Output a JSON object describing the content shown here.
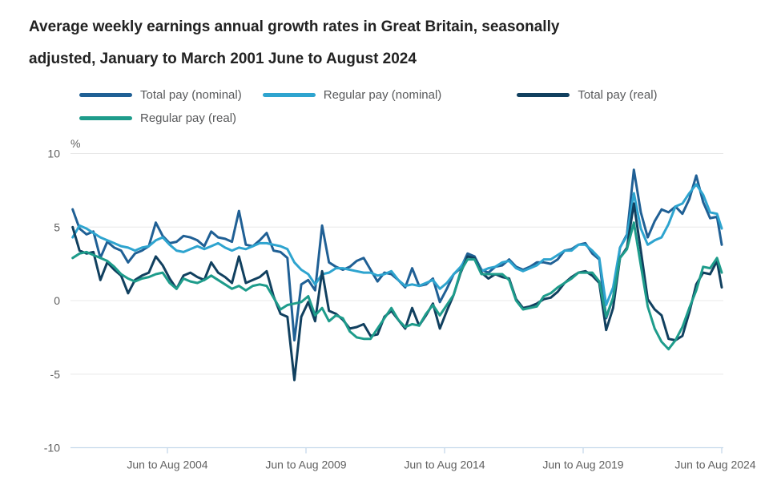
{
  "title": {
    "line1": "Average weekly earnings annual growth rates in Great Britain, seasonally",
    "line2": "adjusted, January to March 2001 June to August 2024"
  },
  "chart_data": {
    "type": "line",
    "title": "Average weekly earnings annual growth rates in Great Britain, seasonally adjusted, January to March 2001 June to August 2024",
    "unit_label": "%",
    "ylabel": "%",
    "xlabel": "",
    "ylim": [
      -10,
      10
    ],
    "yticks": [
      "10",
      "5",
      "0",
      "-5",
      "-10"
    ],
    "ytick_values": [
      10,
      5,
      0,
      -5,
      -10
    ],
    "grid": "horizontal",
    "legend_position": "top",
    "xticks": [
      {
        "label": "Jun to Aug 2004",
        "year": 2004.54
      },
      {
        "label": "Jun to Aug 2009",
        "year": 2009.54
      },
      {
        "label": "Jun to Aug 2014",
        "year": 2014.54
      },
      {
        "label": "Jun to Aug 2019",
        "year": 2019.54
      },
      {
        "label": "Jun to Aug 2024",
        "year": 2024.54
      }
    ],
    "x_years": [
      2001.12,
      2001.37,
      2001.62,
      2001.87,
      2002.12,
      2002.37,
      2002.62,
      2002.87,
      2003.12,
      2003.37,
      2003.62,
      2003.87,
      2004.12,
      2004.37,
      2004.62,
      2004.87,
      2005.12,
      2005.37,
      2005.62,
      2005.87,
      2006.12,
      2006.37,
      2006.62,
      2006.87,
      2007.12,
      2007.37,
      2007.62,
      2007.87,
      2008.12,
      2008.37,
      2008.62,
      2008.87,
      2009.12,
      2009.37,
      2009.62,
      2009.87,
      2010.12,
      2010.37,
      2010.62,
      2010.87,
      2011.12,
      2011.37,
      2011.62,
      2011.87,
      2012.12,
      2012.37,
      2012.62,
      2012.87,
      2013.12,
      2013.37,
      2013.62,
      2013.87,
      2014.12,
      2014.37,
      2014.62,
      2014.87,
      2015.12,
      2015.37,
      2015.62,
      2015.87,
      2016.12,
      2016.37,
      2016.62,
      2016.87,
      2017.12,
      2017.37,
      2017.62,
      2017.87,
      2018.12,
      2018.37,
      2018.62,
      2018.87,
      2019.12,
      2019.37,
      2019.62,
      2019.87,
      2020.12,
      2020.37,
      2020.62,
      2020.87,
      2021.12,
      2021.37,
      2021.62,
      2021.87,
      2022.12,
      2022.37,
      2022.62,
      2022.87,
      2023.12,
      2023.37,
      2023.62,
      2023.87,
      2024.12,
      2024.37,
      2024.54
    ],
    "series": [
      {
        "name": "Total pay (nominal)",
        "color": "#206095",
        "values": [
          6.2,
          4.9,
          4.5,
          4.7,
          2.9,
          4.0,
          3.6,
          3.4,
          2.6,
          3.2,
          3.4,
          3.7,
          5.3,
          4.4,
          3.9,
          4.0,
          4.4,
          4.3,
          4.1,
          3.7,
          4.7,
          4.3,
          4.2,
          4.0,
          6.1,
          3.8,
          3.7,
          4.1,
          4.6,
          3.4,
          3.3,
          2.9,
          -2.7,
          1.1,
          1.4,
          0.7,
          5.1,
          2.6,
          2.3,
          2.1,
          2.3,
          2.7,
          2.9,
          2.1,
          1.3,
          1.9,
          1.8,
          1.4,
          0.9,
          2.2,
          1.0,
          1.1,
          1.5,
          -0.1,
          0.8,
          1.8,
          2.2,
          3.2,
          3.0,
          2.1,
          1.9,
          2.3,
          2.4,
          2.8,
          2.3,
          2.1,
          2.3,
          2.6,
          2.6,
          2.5,
          2.8,
          3.4,
          3.5,
          3.8,
          3.9,
          3.2,
          2.8,
          -1.2,
          0.2,
          3.6,
          4.5,
          8.9,
          6.0,
          4.3,
          5.4,
          6.2,
          6.0,
          6.4,
          5.9,
          6.9,
          8.5,
          6.7,
          5.6,
          5.7,
          3.8
        ]
      },
      {
        "name": "Regular pay (nominal)",
        "color": "#2EA4CF",
        "values": [
          4.3,
          5.1,
          4.9,
          4.6,
          4.3,
          4.1,
          3.9,
          3.7,
          3.6,
          3.4,
          3.6,
          3.7,
          4.1,
          4.3,
          3.8,
          3.4,
          3.3,
          3.5,
          3.7,
          3.5,
          3.7,
          3.9,
          3.6,
          3.4,
          3.6,
          3.5,
          3.7,
          3.9,
          3.9,
          3.8,
          3.7,
          3.5,
          2.6,
          2.1,
          1.8,
          1.1,
          1.8,
          1.9,
          2.2,
          2.2,
          2.1,
          2.0,
          1.9,
          1.9,
          1.7,
          1.8,
          2.0,
          1.4,
          1.0,
          1.1,
          1.0,
          1.2,
          1.4,
          0.8,
          1.2,
          1.8,
          2.3,
          3.0,
          2.9,
          2.0,
          2.2,
          2.3,
          2.6,
          2.7,
          2.2,
          2.0,
          2.2,
          2.4,
          2.8,
          2.8,
          3.1,
          3.4,
          3.4,
          3.8,
          3.8,
          3.4,
          2.9,
          -0.3,
          0.9,
          3.6,
          4.4,
          7.3,
          4.9,
          3.8,
          4.1,
          4.3,
          5.2,
          6.4,
          6.6,
          7.3,
          7.9,
          7.2,
          6.0,
          5.9,
          4.9
        ]
      },
      {
        "name": "Total pay (real)",
        "color": "#11405F",
        "values": [
          5.0,
          3.4,
          3.2,
          3.3,
          1.4,
          2.6,
          2.1,
          1.7,
          0.5,
          1.4,
          1.7,
          1.9,
          3.0,
          2.4,
          1.5,
          0.8,
          1.7,
          1.9,
          1.6,
          1.4,
          2.6,
          1.9,
          1.6,
          1.2,
          3.0,
          1.2,
          1.4,
          1.6,
          2.0,
          0.3,
          -0.9,
          -1.1,
          -5.4,
          -1.1,
          -0.1,
          -1.4,
          2.0,
          -0.7,
          -0.9,
          -1.3,
          -1.9,
          -1.8,
          -1.6,
          -2.4,
          -2.3,
          -1.1,
          -0.7,
          -1.3,
          -1.9,
          -0.5,
          -1.7,
          -1.0,
          -0.2,
          -1.9,
          -0.7,
          0.4,
          1.9,
          3.0,
          2.9,
          1.9,
          1.5,
          1.8,
          1.6,
          1.5,
          0.1,
          -0.5,
          -0.4,
          -0.2,
          0.1,
          0.2,
          0.6,
          1.2,
          1.6,
          1.9,
          2.0,
          1.7,
          1.2,
          -2.0,
          -0.5,
          2.9,
          3.6,
          6.6,
          3.4,
          0.1,
          -0.6,
          -1.0,
          -2.6,
          -2.7,
          -2.4,
          -0.8,
          1.1,
          1.9,
          1.8,
          2.7,
          0.9
        ]
      },
      {
        "name": "Regular pay (real)",
        "color": "#1E9C8B",
        "values": [
          2.9,
          3.2,
          3.3,
          3.1,
          2.9,
          2.7,
          2.3,
          1.8,
          1.5,
          1.3,
          1.5,
          1.6,
          1.8,
          1.9,
          1.2,
          0.8,
          1.5,
          1.3,
          1.2,
          1.4,
          1.7,
          1.4,
          1.1,
          0.8,
          1.0,
          0.7,
          1.0,
          1.1,
          1.0,
          0.2,
          -0.6,
          -0.3,
          -0.2,
          -0.1,
          0.3,
          -1.0,
          -0.5,
          -1.4,
          -1.0,
          -1.2,
          -2.1,
          -2.5,
          -2.6,
          -2.6,
          -1.9,
          -1.2,
          -0.5,
          -1.3,
          -1.8,
          -1.6,
          -1.7,
          -0.9,
          -0.3,
          -1.0,
          -0.3,
          0.4,
          2.0,
          2.8,
          2.8,
          1.8,
          1.8,
          1.8,
          1.8,
          1.4,
          0.0,
          -0.6,
          -0.5,
          -0.4,
          0.3,
          0.5,
          0.9,
          1.2,
          1.5,
          1.9,
          1.9,
          1.9,
          1.3,
          -1.1,
          0.2,
          2.9,
          3.5,
          5.3,
          2.4,
          -0.4,
          -1.9,
          -2.8,
          -3.3,
          -2.7,
          -1.8,
          -0.5,
          0.7,
          2.3,
          2.2,
          2.9,
          1.9
        ]
      }
    ],
    "colors": {
      "gridline": "#E8E8E8",
      "axis_line": "#C5D8EA",
      "axis_text": "#5f5f5f",
      "legend_text": "#58595B",
      "title_text": "#222222"
    }
  }
}
